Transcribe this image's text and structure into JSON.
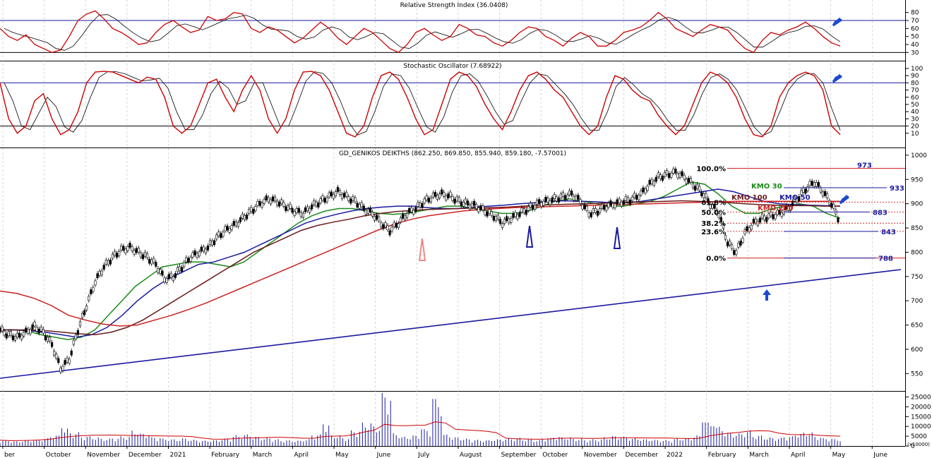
{
  "panels": {
    "rsi": {
      "title": "Relative Strength Index (36.0408)",
      "ticks": [
        "80",
        "70",
        "60",
        "50",
        "40",
        "30"
      ]
    },
    "stoch": {
      "title": "Stochastic Oscillator (7.68922)",
      "ticks": [
        "100",
        "90",
        "80",
        "70",
        "60",
        "50",
        "40",
        "30",
        "20",
        "10"
      ]
    },
    "price": {
      "title": "GD_GENIKOS DEIKTHS (862.250, 869.850, 855.940, 859.180, -7.57001)",
      "ticks": [
        "1000",
        "950",
        "900",
        "850",
        "800",
        "750",
        "700",
        "650",
        "600",
        "550"
      ]
    },
    "volume": {
      "ticks": [
        "25000",
        "20000",
        "15000",
        "10000",
        "5000",
        "0"
      ],
      "unit": "(x10000)"
    }
  },
  "x_axis": {
    "months": [
      "ber",
      "October",
      "November",
      "December",
      "2021",
      "February",
      "March",
      "April",
      "May",
      "June",
      "July",
      "August",
      "September",
      "October",
      "November",
      "December",
      "2022",
      "February",
      "March",
      "April",
      "May",
      "June"
    ]
  },
  "colors": {
    "price_line": "#cc0000",
    "signal_line": "#000000",
    "guide": "#1a1aa0",
    "ma30": "#1a8a1a",
    "ma50": "#1a1aa0",
    "ma100": "#6b1a1a",
    "ma200": "#cc2222",
    "trend": "#1a1aa0",
    "fib": "#cc0000",
    "arrow": "#1a4ad0"
  },
  "chart_data": [
    {
      "type": "line",
      "title": "Relative Strength Index (36.0408)",
      "ylim": [
        25,
        85
      ],
      "guides": [
        70,
        30
      ],
      "last_value": 36.0408,
      "series": [
        {
          "values": [
            60,
            50,
            45,
            52,
            40,
            35,
            30,
            33,
            50,
            70,
            78,
            82,
            72,
            60,
            55,
            48,
            40,
            42,
            55,
            65,
            70,
            62,
            55,
            58,
            75,
            70,
            72,
            80,
            78,
            60,
            55,
            62,
            58,
            50,
            42,
            48,
            58,
            68,
            60,
            48,
            40,
            50,
            60,
            55,
            45,
            35,
            30,
            40,
            55,
            60,
            52,
            45,
            50,
            65,
            60,
            52,
            50,
            42,
            38,
            45,
            55,
            62,
            60,
            50,
            45,
            38,
            48,
            55,
            50,
            38,
            38,
            45,
            55,
            58,
            62,
            70,
            80,
            72,
            60,
            55,
            50,
            58,
            65,
            62,
            58,
            45,
            35,
            30,
            45,
            55,
            52,
            58,
            62,
            68,
            60,
            50,
            42,
            38
          ]
        }
      ]
    },
    {
      "type": "line",
      "title": "Stochastic Oscillator (7.68922)",
      "ylim": [
        0,
        100
      ],
      "guides": [
        80,
        20
      ],
      "last_value": 7.68922,
      "series": [
        {
          "values": [
            80,
            30,
            10,
            20,
            55,
            65,
            30,
            8,
            15,
            40,
            80,
            95,
            96,
            95,
            90,
            85,
            80,
            88,
            85,
            60,
            20,
            10,
            20,
            50,
            80,
            85,
            60,
            40,
            70,
            90,
            70,
            30,
            10,
            30,
            70,
            95,
            96,
            90,
            70,
            40,
            10,
            5,
            20,
            60,
            90,
            95,
            85,
            60,
            30,
            8,
            15,
            50,
            85,
            95,
            90,
            75,
            50,
            30,
            15,
            40,
            70,
            90,
            95,
            85,
            70,
            60,
            40,
            20,
            8,
            20,
            60,
            90,
            85,
            70,
            60,
            55,
            35,
            20,
            8,
            20,
            50,
            80,
            95,
            90,
            80,
            60,
            30,
            8,
            5,
            20,
            60,
            80,
            90,
            95,
            90,
            70,
            20,
            8
          ]
        }
      ]
    },
    {
      "type": "line",
      "title": "GD_GENIKOS DEIKTHS (862.250, 869.850, 855.940, 859.180, -7.57001)",
      "ylim": [
        520,
        1010
      ],
      "series": [
        {
          "values": [
            640,
            630,
            625,
            635,
            648,
            635,
            610,
            560,
            580,
            640,
            690,
            740,
            770,
            790,
            805,
            810,
            800,
            790,
            775,
            745,
            750,
            770,
            790,
            800,
            810,
            830,
            845,
            855,
            870,
            885,
            900,
            910,
            905,
            895,
            885,
            880,
            895,
            905,
            915,
            925,
            915,
            905,
            890,
            880,
            860,
            845,
            860,
            880,
            890,
            905,
            915,
            920,
            915,
            905,
            900,
            895,
            885,
            875,
            860,
            870,
            880,
            890,
            900,
            905,
            910,
            915,
            920,
            905,
            880,
            885,
            895,
            900,
            905,
            910,
            920,
            940,
            955,
            960,
            965,
            955,
            940,
            925,
            900,
            880,
            820,
            800,
            840,
            860,
            870,
            875,
            880,
            890,
            910,
            930,
            945,
            925,
            900,
            862
          ]
        },
        {
          "name": "KMO 30",
          "values": [
            640,
            640,
            638,
            630,
            625,
            620,
            625,
            640,
            670,
            700,
            730,
            750,
            770,
            775,
            780,
            780,
            775,
            770,
            780,
            800,
            820,
            840,
            860,
            875,
            885,
            890,
            890,
            885,
            880,
            878,
            880,
            885,
            890,
            895,
            895,
            890,
            885,
            880,
            880,
            885,
            895,
            905,
            910,
            905,
            900,
            895,
            895,
            900,
            905,
            915,
            930,
            945,
            940,
            920,
            895,
            880,
            880,
            890,
            895,
            900,
            895,
            880,
            870
          ]
        },
        {
          "name": "KMO 50",
          "values": [
            640,
            640,
            638,
            635,
            630,
            625,
            630,
            645,
            670,
            700,
            725,
            745,
            760,
            775,
            780,
            790,
            800,
            815,
            830,
            845,
            860,
            870,
            878,
            885,
            890,
            893,
            895,
            895,
            892,
            890,
            890,
            893,
            895,
            897,
            900,
            902,
            905,
            906,
            905,
            904,
            902,
            902,
            905,
            910,
            915,
            920,
            925,
            930,
            925,
            915,
            905,
            900,
            898,
            897,
            896,
            895
          ]
        },
        {
          "name": "KMO 100",
          "values": [
            640,
            640,
            640,
            638,
            635,
            632,
            630,
            635,
            645,
            660,
            680,
            700,
            720,
            740,
            760,
            780,
            800,
            815,
            830,
            845,
            855,
            862,
            868,
            875,
            880,
            884,
            886,
            888,
            889,
            890,
            891,
            892,
            893,
            895,
            897,
            898,
            899,
            900,
            901,
            902,
            903,
            904,
            905,
            906,
            905,
            904,
            902,
            900,
            898,
            897,
            896,
            896,
            895,
            895
          ]
        },
        {
          "name": "KMO 200",
          "values": [
            720,
            715,
            705,
            690,
            670,
            660,
            652,
            648,
            650,
            660,
            670,
            682,
            695,
            710,
            725,
            740,
            755,
            770,
            785,
            800,
            815,
            830,
            845,
            858,
            868,
            875,
            880,
            885,
            888,
            890,
            892,
            893,
            894,
            895,
            896,
            897,
            898,
            899,
            900,
            901,
            902,
            903,
            904,
            905,
            905,
            905,
            905,
            905,
            905,
            905
          ]
        }
      ],
      "annotations": {
        "fibonacci": [
          {
            "label": "100.0%",
            "value": 973
          },
          {
            "label": "61.8%",
            "value": 903
          },
          {
            "label": "50.0%",
            "value": 883
          },
          {
            "label": "38.2%",
            "value": 860
          },
          {
            "label": "23.6%",
            "value": 843
          },
          {
            "label": "0.0%",
            "value": 788
          }
        ],
        "levels": [
          "973",
          "933",
          "883",
          "843",
          "788"
        ],
        "ma_labels": [
          "KMO 30",
          "KMO 50",
          "KMO 100",
          "KMO 200"
        ]
      }
    },
    {
      "type": "bar",
      "ylim": [
        0,
        27000
      ],
      "values": [
        3000,
        2500,
        2800,
        3200,
        4000,
        5500,
        9000,
        7000,
        5000,
        4500,
        3800,
        4200,
        5000,
        8000,
        6500,
        4500,
        3800,
        3500,
        4000,
        3200,
        2800,
        3000,
        3800,
        5500,
        6000,
        4800,
        4200,
        3500,
        3000,
        2800,
        3500,
        6000,
        11000,
        5500,
        4200,
        8000,
        12000,
        10000,
        27000,
        6500,
        4800,
        5500,
        8500,
        24000,
        6000,
        4500,
        3800,
        3200,
        3000,
        3500,
        3800,
        4200,
        3500,
        3000,
        4000,
        5000,
        4500,
        3800,
        3200,
        3500,
        4500,
        5200,
        4800,
        4000,
        3500,
        3200,
        3000,
        3800,
        4200,
        5500,
        12000,
        10000,
        7000,
        6500,
        8000,
        5500,
        4500,
        4200,
        5000,
        6500,
        7000,
        5000,
        4000,
        3500
      ]
    }
  ]
}
